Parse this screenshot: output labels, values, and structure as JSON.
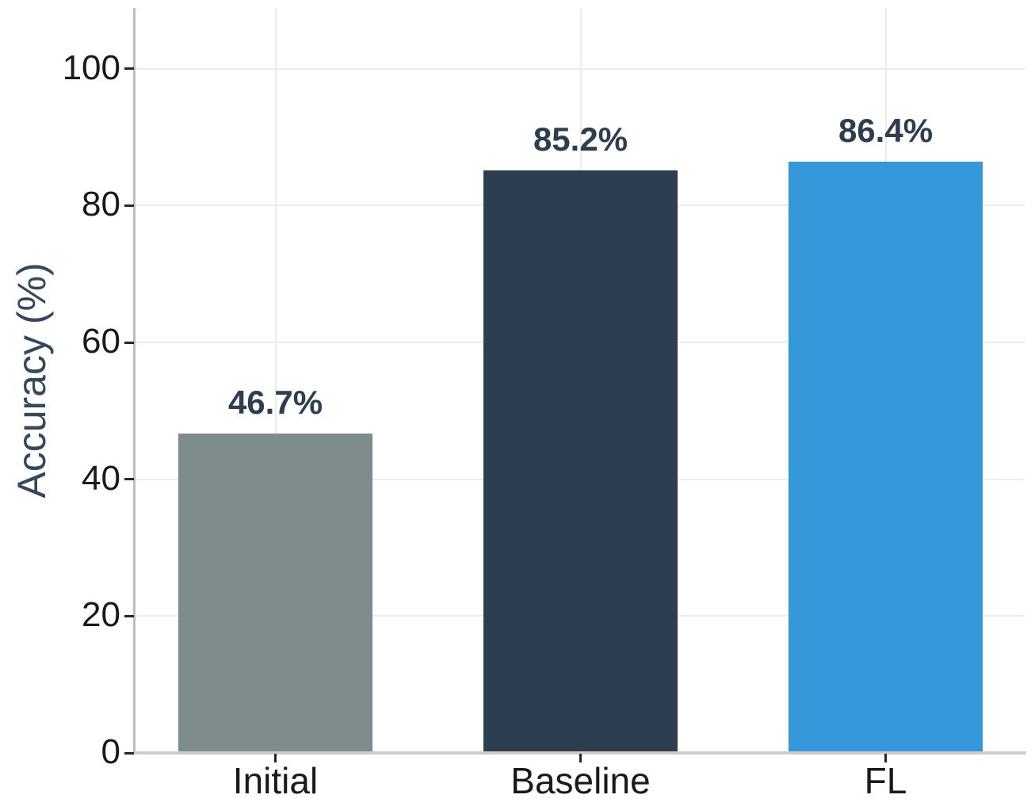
{
  "chart_data": {
    "type": "bar",
    "title": "",
    "categories": [
      "Initial",
      "Baseline",
      "FL"
    ],
    "values": [
      46.7,
      85.2,
      86.4
    ],
    "bar_labels": [
      "46.7%",
      "85.2%",
      "86.4%"
    ],
    "bar_colors": [
      "#7f8c8d",
      "#2c3e50",
      "#3498db"
    ],
    "xlabel": "",
    "ylabel": "Accuracy (%)",
    "yticks": [
      0,
      20,
      40,
      60,
      80,
      100
    ],
    "ylim": [
      0,
      108.9
    ],
    "grid": true,
    "legend": false
  },
  "colors": {
    "value_label": "#2c3e50",
    "axis_title": "#34495e",
    "tick_label": "#1a1a1a",
    "spine": "#c6c6c6",
    "gridline": "#ececec",
    "tick_mark": "#262626",
    "background": "#ffffff"
  }
}
